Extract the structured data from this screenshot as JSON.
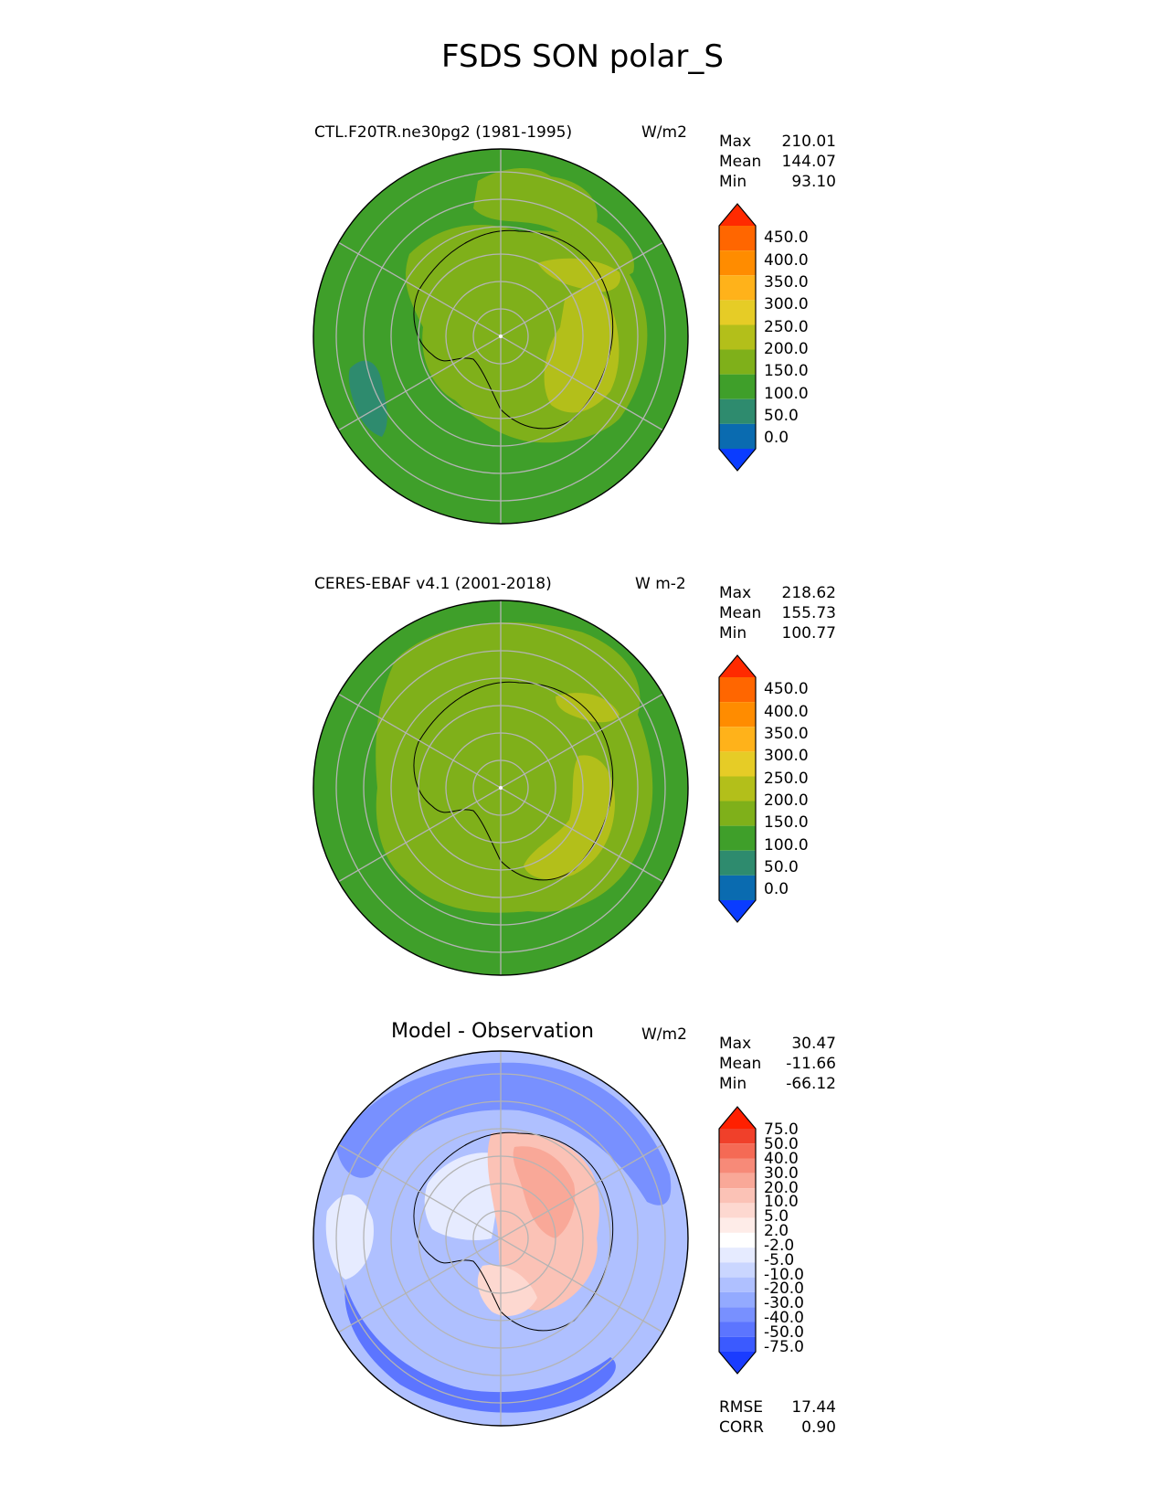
{
  "figure": {
    "title": "FSDS SON polar_S"
  },
  "panels": [
    {
      "title": "CTL.F20TR.ne30pg2 (1981-1995)",
      "units": "W/m2",
      "stats": [
        {
          "label": "Max",
          "value": "210.01"
        },
        {
          "label": "Mean",
          "value": "144.07"
        },
        {
          "label": "Min",
          "value": "93.10"
        }
      ],
      "colorbar": {
        "ticks": [
          "450.0",
          "400.0",
          "350.0",
          "300.0",
          "250.0",
          "200.0",
          "150.0",
          "100.0",
          "50.0",
          "0.0"
        ],
        "colors": [
          "#ff2a00",
          "#ff6600",
          "#ff8c00",
          "#ffb21a",
          "#e6cc26",
          "#b3bf1a",
          "#7fb01a",
          "#3f9f2a",
          "#2e8b6e",
          "#0a6bb0",
          "#0a3cff"
        ]
      }
    },
    {
      "title": "CERES-EBAF v4.1 (2001-2018)",
      "units": "W m-2",
      "stats": [
        {
          "label": "Max",
          "value": "218.62"
        },
        {
          "label": "Mean",
          "value": "155.73"
        },
        {
          "label": "Min",
          "value": "100.77"
        }
      ],
      "colorbar": {
        "ticks": [
          "450.0",
          "400.0",
          "350.0",
          "300.0",
          "250.0",
          "200.0",
          "150.0",
          "100.0",
          "50.0",
          "0.0"
        ],
        "colors": [
          "#ff2a00",
          "#ff6600",
          "#ff8c00",
          "#ffb21a",
          "#e6cc26",
          "#b3bf1a",
          "#7fb01a",
          "#3f9f2a",
          "#2e8b6e",
          "#0a6bb0",
          "#0a3cff"
        ]
      }
    },
    {
      "title": "Model - Observation",
      "units": "W/m2",
      "stats": [
        {
          "label": "Max",
          "value": "30.47"
        },
        {
          "label": "Mean",
          "value": "-11.66"
        },
        {
          "label": "Min",
          "value": "-66.12"
        }
      ],
      "colorbar": {
        "ticks": [
          "75.0",
          "50.0",
          "40.0",
          "30.0",
          "20.0",
          "10.0",
          "5.0",
          "2.0",
          "-2.0",
          "-5.0",
          "-10.0",
          "-20.0",
          "-30.0",
          "-40.0",
          "-50.0",
          "-75.0"
        ],
        "colors": [
          "#ff2000",
          "#f0402a",
          "#f56a55",
          "#f78a78",
          "#f9a898",
          "#fbc2b6",
          "#fdd8d0",
          "#feece8",
          "#ffffff",
          "#e6ebff",
          "#cad6ff",
          "#afc0ff",
          "#93aaff",
          "#7890ff",
          "#5c75ff",
          "#3b5aff",
          "#1a3cff"
        ]
      },
      "metrics": [
        {
          "label": "RMSE",
          "value": "17.44"
        },
        {
          "label": "CORR",
          "value": "0.90"
        }
      ]
    }
  ],
  "map_colors": {
    "ocean_green": "#3f9f2a",
    "light_green": "#7fb01a",
    "yellow_green": "#b3bf1a",
    "teal": "#2e8b6e",
    "grid": "#b4b4b4",
    "diff_blue": "#93aaff",
    "diff_lightblue": "#cad6ff",
    "diff_darkblue": "#5c75ff",
    "diff_red": "#f9a898",
    "diff_lightred": "#fdd8d0"
  }
}
